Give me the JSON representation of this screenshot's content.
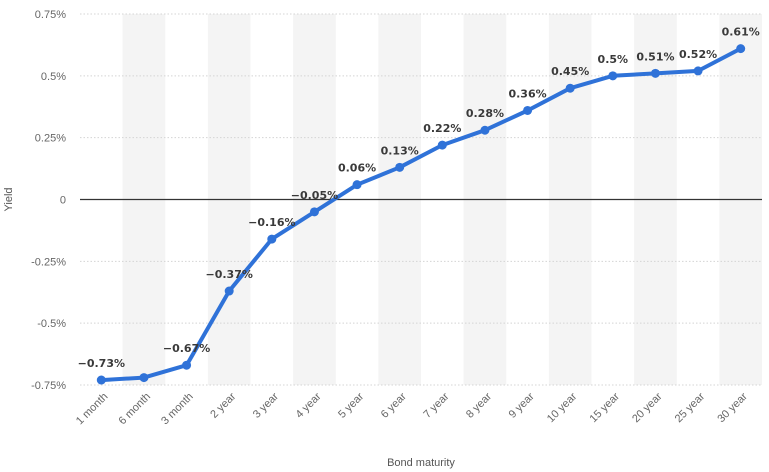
{
  "chart_data": {
    "type": "line",
    "title": "",
    "xlabel": "Bond maturity",
    "ylabel": "Yield",
    "categories": [
      "1 month",
      "6 month",
      "3 month",
      "2 year",
      "3 year",
      "4 year",
      "5 year",
      "6 year",
      "7 year",
      "8 year",
      "9 year",
      "10 year",
      "15 year",
      "20 year",
      "25 year",
      "30 year"
    ],
    "series": [
      {
        "values": [
          -0.73,
          -0.72,
          -0.67,
          -0.37,
          -0.16,
          -0.05,
          0.06,
          0.13,
          0.22,
          0.28,
          0.36,
          0.45,
          0.5,
          0.51,
          0.52,
          0.61
        ],
        "data_labels": [
          "−0.73%",
          "",
          "−0.67%",
          "−0.37%",
          "−0.16%",
          "−0.05%",
          "0.06%",
          "0.13%",
          "0.22%",
          "0.28%",
          "0.36%",
          "0.45%",
          "0.5%",
          "0.51%",
          "0.52%",
          "0.61%"
        ]
      }
    ],
    "ylim": [
      -0.75,
      0.75
    ],
    "y_ticks": [
      0.75,
      0.5,
      0.25,
      0,
      -0.25,
      -0.5,
      -0.75
    ],
    "y_tick_labels": [
      "0.75%",
      "0.5%",
      "0.25%",
      "0",
      "-0.25%",
      "-0.5%",
      "-0.75%"
    ],
    "grid": "horizontal dotted, alternating column bands",
    "legend": "none",
    "colors": {
      "line": "#2f72d8",
      "band": "#f4f4f4",
      "grid": "#d4d4d4",
      "zero_line": "#333333"
    }
  }
}
